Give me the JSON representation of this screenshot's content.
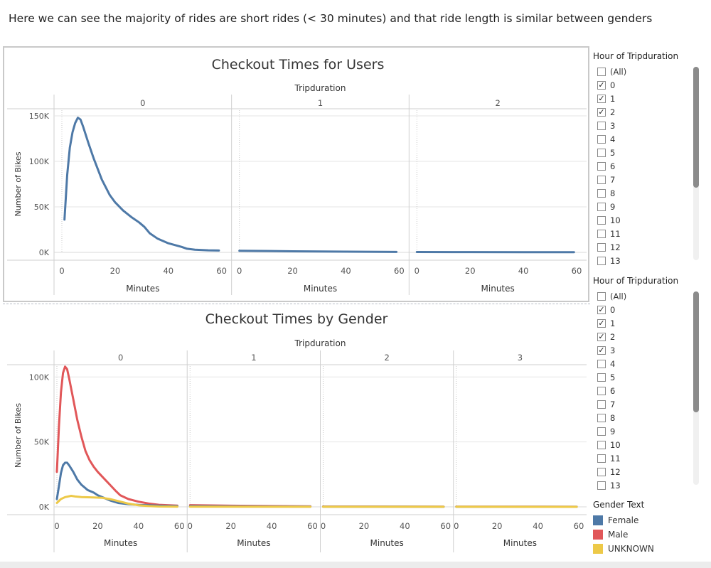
{
  "caption": "Here we can see the majority of rides are short rides (< 30 minutes) and that ride length is similar between genders",
  "colors": {
    "female": "#4e79a7",
    "male": "#e15759",
    "unknown": "#edc948",
    "users": "#4e79a7",
    "grid": "#e6e6e6",
    "axis": "#cfcfcf"
  },
  "chart_data": [
    {
      "type": "line",
      "title": "Checkout Times for Users",
      "facet_label": "Tripduration",
      "facets": [
        "0",
        "1",
        "2"
      ],
      "xlabel": "Minutes",
      "ylabel": "Number of Bikes",
      "xlim": [
        0,
        60
      ],
      "xticks": [
        "0",
        "20",
        "40",
        "60"
      ],
      "ylim": [
        0,
        150000
      ],
      "yticks": [
        {
          "v": 0,
          "label": "0K"
        },
        {
          "v": 50000,
          "label": "50K"
        },
        {
          "v": 100000,
          "label": "100K"
        },
        {
          "v": 150000,
          "label": "150K"
        }
      ],
      "grid": true,
      "series": [
        {
          "color_key": "users",
          "panels": [
            [
              [
                1,
                36000
              ],
              [
                2,
                85000
              ],
              [
                3,
                115000
              ],
              [
                4,
                132000
              ],
              [
                5,
                142000
              ],
              [
                6,
                148000
              ],
              [
                7,
                146000
              ],
              [
                8,
                138000
              ],
              [
                10,
                120000
              ],
              [
                12,
                103000
              ],
              [
                15,
                80000
              ],
              [
                18,
                63000
              ],
              [
                20,
                55000
              ],
              [
                23,
                46000
              ],
              [
                26,
                39000
              ],
              [
                29,
                33000
              ],
              [
                31,
                28000
              ],
              [
                33,
                21000
              ],
              [
                36,
                15000
              ],
              [
                40,
                10000
              ],
              [
                45,
                6000
              ],
              [
                47,
                4000
              ],
              [
                50,
                3000
              ],
              [
                55,
                2300
              ],
              [
                59,
                2000
              ]
            ],
            [
              [
                0,
                1800
              ],
              [
                20,
                1200
              ],
              [
                40,
                800
              ],
              [
                59,
                500
              ]
            ],
            [
              [
                0,
                400
              ],
              [
                20,
                300
              ],
              [
                40,
                250
              ],
              [
                59,
                200
              ]
            ]
          ]
        }
      ]
    },
    {
      "type": "line",
      "title": "Checkout Times by Gender",
      "facet_label": "Tripduration",
      "facets": [
        "0",
        "1",
        "2",
        "3"
      ],
      "xlabel": "Minutes",
      "ylabel": "Number of Bikes",
      "xlim": [
        0,
        60
      ],
      "xticks": [
        "0",
        "20",
        "40",
        "60"
      ],
      "ylim": [
        0,
        110000
      ],
      "yticks": [
        {
          "v": 0,
          "label": "0K"
        },
        {
          "v": 50000,
          "label": "50K"
        },
        {
          "v": 100000,
          "label": "100K"
        }
      ],
      "grid": true,
      "series": [
        {
          "name": "Male",
          "color_key": "male",
          "panels": [
            [
              [
                0,
                27000
              ],
              [
                1,
                62000
              ],
              [
                2,
                88000
              ],
              [
                3,
                103000
              ],
              [
                4,
                108000
              ],
              [
                5,
                106000
              ],
              [
                6,
                99000
              ],
              [
                8,
                83000
              ],
              [
                10,
                67000
              ],
              [
                12,
                54000
              ],
              [
                14,
                43000
              ],
              [
                16,
                36000
              ],
              [
                18,
                31000
              ],
              [
                20,
                27000
              ],
              [
                23,
                22000
              ],
              [
                26,
                17000
              ],
              [
                29,
                12000
              ],
              [
                31,
                9000
              ],
              [
                35,
                6000
              ],
              [
                40,
                4000
              ],
              [
                45,
                2500
              ],
              [
                50,
                1600
              ],
              [
                55,
                1200
              ],
              [
                59,
                1000
              ]
            ],
            [
              [
                0,
                1300
              ],
              [
                20,
                900
              ],
              [
                40,
                600
              ],
              [
                59,
                400
              ]
            ],
            [
              [
                0,
                300
              ],
              [
                20,
                250
              ],
              [
                40,
                200
              ],
              [
                59,
                150
              ]
            ],
            [
              [
                0,
                150
              ],
              [
                20,
                120
              ],
              [
                40,
                100
              ],
              [
                59,
                80
              ]
            ]
          ]
        },
        {
          "name": "Female",
          "color_key": "female",
          "panels": [
            [
              [
                0,
                6000
              ],
              [
                1,
                16000
              ],
              [
                2,
                26000
              ],
              [
                3,
                32000
              ],
              [
                4,
                34000
              ],
              [
                5,
                34000
              ],
              [
                6,
                32000
              ],
              [
                8,
                27000
              ],
              [
                10,
                21000
              ],
              [
                12,
                17000
              ],
              [
                15,
                13000
              ],
              [
                18,
                11000
              ],
              [
                20,
                9000
              ],
              [
                23,
                7000
              ],
              [
                26,
                5000
              ],
              [
                30,
                3000
              ],
              [
                35,
                2000
              ],
              [
                40,
                1500
              ],
              [
                45,
                1200
              ],
              [
                50,
                900
              ],
              [
                55,
                700
              ],
              [
                59,
                600
              ]
            ],
            [
              [
                0,
                600
              ],
              [
                20,
                450
              ],
              [
                40,
                300
              ],
              [
                59,
                200
              ]
            ],
            [
              [
                0,
                150
              ],
              [
                20,
                120
              ],
              [
                40,
                100
              ],
              [
                59,
                80
              ]
            ],
            [
              [
                0,
                80
              ],
              [
                20,
                60
              ],
              [
                40,
                50
              ],
              [
                59,
                40
              ]
            ]
          ]
        },
        {
          "name": "UNKNOWN",
          "color_key": "unknown",
          "panels": [
            [
              [
                0,
                3000
              ],
              [
                2,
                6000
              ],
              [
                4,
                7500
              ],
              [
                7,
                8500
              ],
              [
                9,
                8000
              ],
              [
                12,
                7500
              ],
              [
                15,
                7400
              ],
              [
                18,
                7300
              ],
              [
                22,
                7000
              ],
              [
                26,
                6000
              ],
              [
                30,
                4500
              ],
              [
                35,
                2500
              ],
              [
                40,
                1200
              ],
              [
                45,
                600
              ],
              [
                50,
                300
              ],
              [
                55,
                200
              ],
              [
                59,
                150
              ]
            ],
            [
              [
                0,
                100
              ],
              [
                59,
                50
              ]
            ],
            [
              [
                0,
                50
              ],
              [
                59,
                30
              ]
            ],
            [
              [
                0,
                30
              ],
              [
                59,
                20
              ]
            ]
          ]
        }
      ]
    }
  ],
  "filters": [
    {
      "title": "Hour of Tripduration",
      "items": [
        {
          "label": "(All)",
          "checked": false
        },
        {
          "label": "0",
          "checked": true
        },
        {
          "label": "1",
          "checked": true
        },
        {
          "label": "2",
          "checked": true
        },
        {
          "label": "3",
          "checked": false
        },
        {
          "label": "4",
          "checked": false
        },
        {
          "label": "5",
          "checked": false
        },
        {
          "label": "6",
          "checked": false
        },
        {
          "label": "7",
          "checked": false
        },
        {
          "label": "8",
          "checked": false
        },
        {
          "label": "9",
          "checked": false
        },
        {
          "label": "10",
          "checked": false
        },
        {
          "label": "11",
          "checked": false
        },
        {
          "label": "12",
          "checked": false
        },
        {
          "label": "13",
          "checked": false
        }
      ]
    },
    {
      "title": "Hour of Tripduration",
      "items": [
        {
          "label": "(All)",
          "checked": false
        },
        {
          "label": "0",
          "checked": true
        },
        {
          "label": "1",
          "checked": true
        },
        {
          "label": "2",
          "checked": true
        },
        {
          "label": "3",
          "checked": true
        },
        {
          "label": "4",
          "checked": false
        },
        {
          "label": "5",
          "checked": false
        },
        {
          "label": "6",
          "checked": false
        },
        {
          "label": "7",
          "checked": false
        },
        {
          "label": "8",
          "checked": false
        },
        {
          "label": "9",
          "checked": false
        },
        {
          "label": "10",
          "checked": false
        },
        {
          "label": "11",
          "checked": false
        },
        {
          "label": "12",
          "checked": false
        },
        {
          "label": "13",
          "checked": false
        }
      ]
    }
  ],
  "legend": {
    "title": "Gender Text",
    "items": [
      {
        "label": "Female",
        "color_key": "female"
      },
      {
        "label": "Male",
        "color_key": "male"
      },
      {
        "label": "UNKNOWN",
        "color_key": "unknown"
      }
    ]
  }
}
